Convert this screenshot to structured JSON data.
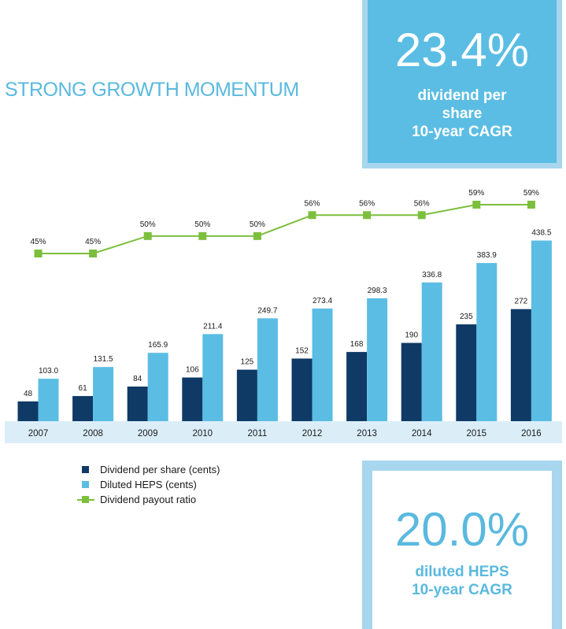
{
  "title": "STRONG GROWTH MOMENTUM",
  "kpi_top": {
    "value": "23.4%",
    "line1": "dividend per",
    "line2": "share",
    "line3": "10-year CAGR"
  },
  "kpi_bottom": {
    "value": "20.0%",
    "line1": "diluted HEPS",
    "line2": "10-year CAGR"
  },
  "colors": {
    "dividend": "#0f3a66",
    "heps": "#5bbde3",
    "payout": "#7cbf3d",
    "axis_band": "#dbeef8",
    "accent": "#5ab9df"
  },
  "chart_data": {
    "type": "bar",
    "categories": [
      "2007",
      "2008",
      "2009",
      "2010",
      "2011",
      "2012",
      "2013",
      "2014",
      "2015",
      "2016"
    ],
    "series": [
      {
        "name": "Dividend per share (cents)",
        "values": [
          48,
          61,
          84,
          106,
          125,
          152,
          168,
          190,
          235,
          272
        ],
        "labels": [
          "48",
          "61",
          "84",
          "106",
          "125",
          "152",
          "168",
          "190",
          "235",
          "272"
        ]
      },
      {
        "name": "Diluted HEPS (cents)",
        "values": [
          103.0,
          131.5,
          165.9,
          211.4,
          249.7,
          273.4,
          298.3,
          336.8,
          383.9,
          438.5
        ],
        "labels": [
          "103.0",
          "131.5",
          "165.9",
          "211.4",
          "249.7",
          "273.4",
          "298.3",
          "336.8",
          "383.9",
          "438.5"
        ]
      }
    ],
    "line_series": {
      "name": "Dividend payout ratio",
      "type": "line",
      "values": [
        45,
        45,
        50,
        50,
        50,
        56,
        56,
        56,
        59,
        59
      ],
      "labels": [
        "45%",
        "45%",
        "50%",
        "50%",
        "50%",
        "56%",
        "56%",
        "56%",
        "59%",
        "59%"
      ]
    }
  },
  "legend": [
    {
      "label": "Dividend per share (cents)",
      "kind": "bar",
      "color": "#0f3a66"
    },
    {
      "label": "Diluted HEPS (cents)",
      "kind": "bar",
      "color": "#5bbde3"
    },
    {
      "label": "Dividend payout ratio",
      "kind": "line",
      "color": "#7cbf3d"
    }
  ]
}
